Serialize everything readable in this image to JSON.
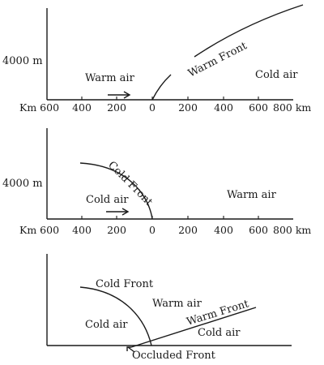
{
  "panels": [
    {
      "id": "warm-front",
      "height_label": "4000 m",
      "axis_labels": [
        "Km 600",
        "400",
        "200",
        "0",
        "200",
        "400",
        "600",
        "800 km"
      ],
      "labels": {
        "left_air": "Warm air",
        "right_air": "Cold air",
        "front": "Warm Front"
      }
    },
    {
      "id": "cold-front",
      "height_label": "4000 m",
      "axis_labels": [
        "Km 600",
        "400",
        "200",
        "0",
        "200",
        "400",
        "600",
        "800 km"
      ],
      "labels": {
        "left_air": "Cold air",
        "right_air": "Warm air",
        "front": "Cold Front"
      }
    },
    {
      "id": "occluded-front",
      "labels": {
        "cold_front": "Cold Front",
        "warm_air": "Warm air",
        "warm_front": "Warm Front",
        "cold_air_left": "Cold air",
        "cold_air_right": "Cold air",
        "occluded": "Occluded Front"
      }
    }
  ]
}
